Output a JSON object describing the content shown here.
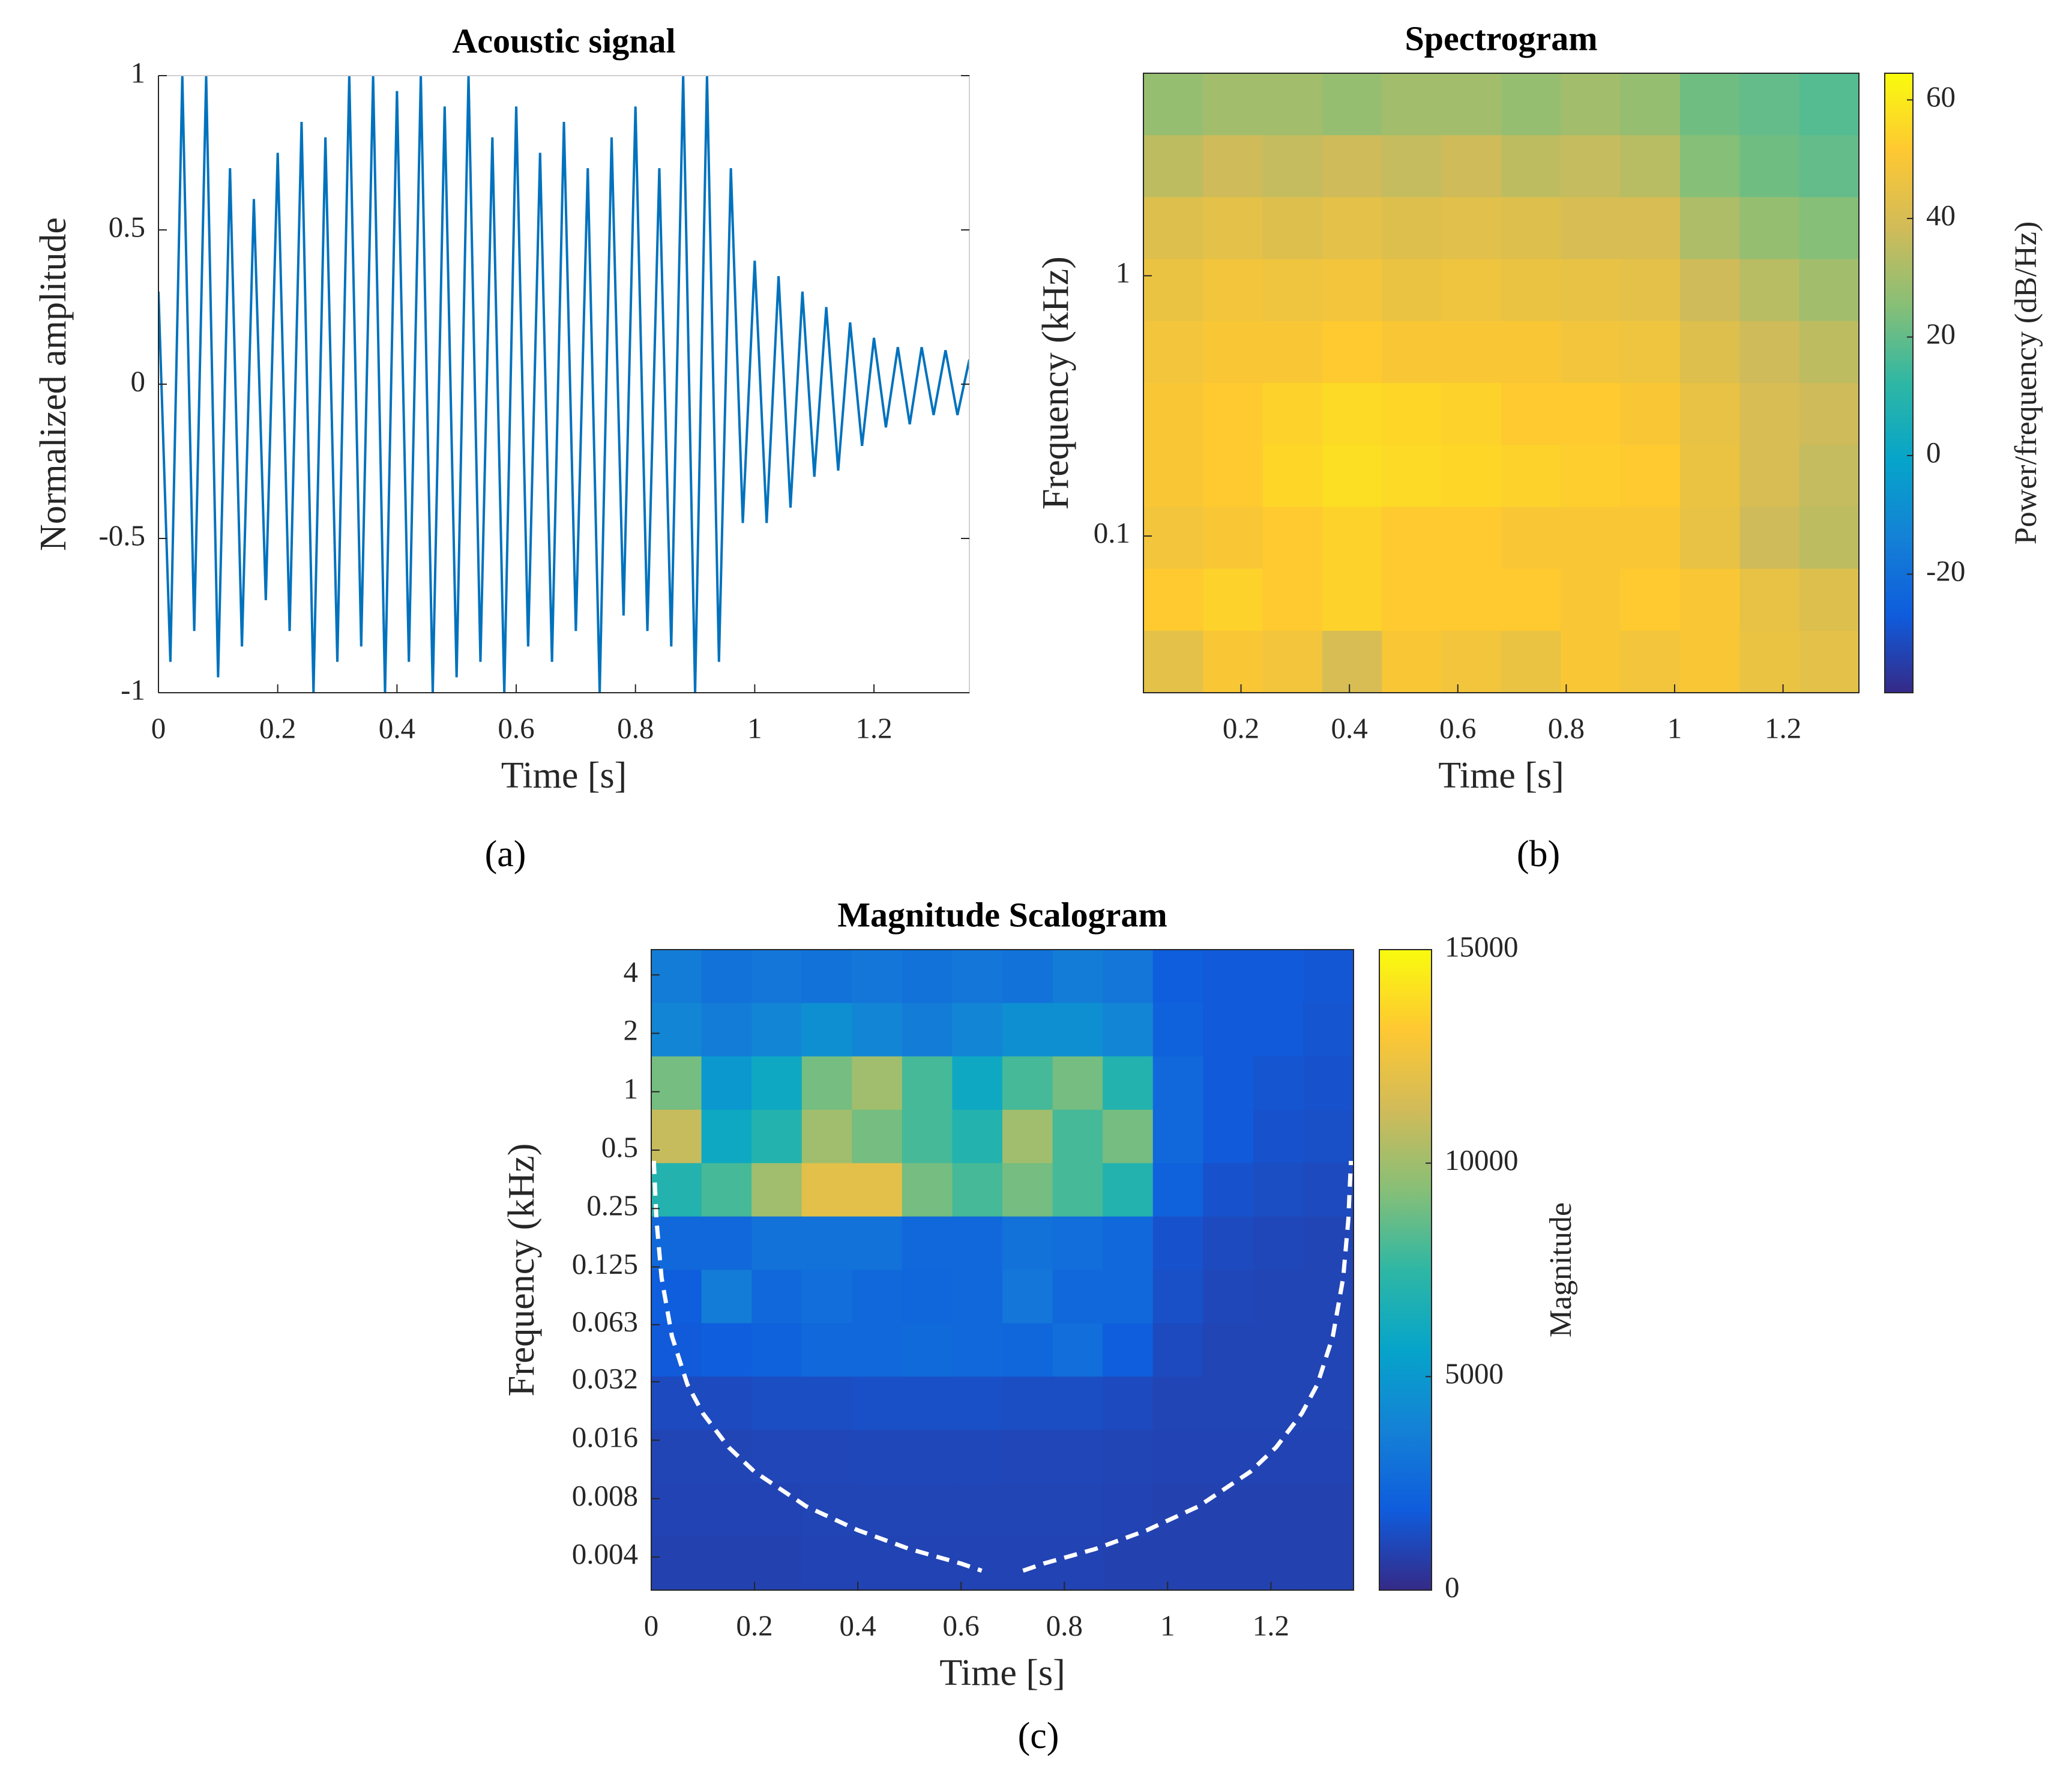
{
  "chart_data": [
    {
      "type": "line",
      "title": "Acoustic signal",
      "xlabel": "Time [s]",
      "ylabel": "Normalized amplitude",
      "caption": "(a)",
      "x": [
        0,
        0.02,
        0.04,
        0.06,
        0.08,
        0.1,
        0.12,
        0.14,
        0.16,
        0.18,
        0.2,
        0.22,
        0.24,
        0.26,
        0.28,
        0.3,
        0.32,
        0.34,
        0.36,
        0.38,
        0.4,
        0.42,
        0.44,
        0.46,
        0.48,
        0.5,
        0.52,
        0.54,
        0.56,
        0.58,
        0.6,
        0.62,
        0.64,
        0.66,
        0.68,
        0.7,
        0.72,
        0.74,
        0.76,
        0.78,
        0.8,
        0.82,
        0.84,
        0.86,
        0.88,
        0.9,
        0.92,
        0.94,
        0.96,
        0.98,
        1.0,
        1.02,
        1.04,
        1.06,
        1.08,
        1.1,
        1.12,
        1.14,
        1.16,
        1.18,
        1.2,
        1.22,
        1.24,
        1.26,
        1.28,
        1.3,
        1.32,
        1.34,
        1.36
      ],
      "values": [
        0.3,
        -0.9,
        1,
        -0.8,
        1,
        -0.95,
        0.7,
        -0.85,
        0.6,
        -0.7,
        0.75,
        -0.8,
        0.85,
        -1,
        0.8,
        -0.9,
        1,
        -0.85,
        1,
        -1,
        0.95,
        -0.9,
        1,
        -1,
        0.9,
        -0.95,
        1,
        -0.9,
        0.8,
        -1,
        0.9,
        -0.85,
        0.75,
        -0.9,
        0.85,
        -0.8,
        0.7,
        -1,
        0.8,
        -0.75,
        0.9,
        -0.8,
        0.7,
        -0.85,
        1,
        -1,
        1,
        -0.9,
        0.7,
        -0.45,
        0.4,
        -0.45,
        0.35,
        -0.4,
        0.3,
        -0.3,
        0.25,
        -0.28,
        0.2,
        -0.2,
        0.15,
        -0.14,
        0.12,
        -0.13,
        0.12,
        -0.1,
        0.11,
        -0.1,
        0.08
      ],
      "color": "#0072bd",
      "xlim": [
        0,
        1.36
      ],
      "xticks": [
        0,
        0.2,
        0.4,
        0.6,
        0.8,
        1,
        1.2
      ],
      "ylim": [
        -1,
        1
      ],
      "yticks": [
        -1,
        -0.5,
        0,
        0.5,
        1
      ]
    },
    {
      "type": "heatmap",
      "title": "Spectrogram",
      "xlabel": "Time [s]",
      "ylabel": "Frequency (kHz)",
      "caption": "(b)",
      "xlim": [
        0.02,
        1.34
      ],
      "xticks": [
        0.2,
        0.4,
        0.6,
        0.8,
        1,
        1.2
      ],
      "ylim": [
        0.025,
        6
      ],
      "yscale": "log",
      "yticks": [
        0.1,
        1
      ],
      "colormap": "parula",
      "clabel": "Power/frequency (dB/Hz)",
      "clim": [
        -40,
        64.5
      ],
      "cticks": [
        -20,
        0,
        20,
        40,
        60
      ],
      "z": [
        [
          28,
          30,
          30,
          28,
          30,
          30,
          28,
          30,
          28,
          22,
          20,
          18
        ],
        [
          35,
          38,
          36,
          38,
          36,
          38,
          35,
          36,
          34,
          25,
          22,
          20
        ],
        [
          42,
          44,
          42,
          44,
          42,
          43,
          42,
          40,
          40,
          32,
          28,
          25
        ],
        [
          46,
          48,
          47,
          48,
          46,
          47,
          46,
          45,
          44,
          38,
          34,
          30
        ],
        [
          48,
          50,
          50,
          52,
          50,
          50,
          50,
          48,
          47,
          42,
          38,
          35
        ],
        [
          50,
          52,
          54,
          56,
          55,
          54,
          52,
          52,
          50,
          45,
          40,
          38
        ],
        [
          50,
          52,
          55,
          57,
          56,
          55,
          54,
          53,
          52,
          46,
          40,
          36
        ],
        [
          48,
          50,
          52,
          54,
          52,
          52,
          50,
          50,
          50,
          45,
          38,
          35
        ],
        [
          52,
          54,
          52,
          54,
          52,
          52,
          52,
          50,
          52,
          50,
          45,
          42
        ],
        [
          44,
          50,
          48,
          40,
          50,
          48,
          46,
          50,
          48,
          50,
          46,
          44
        ]
      ]
    },
    {
      "type": "heatmap",
      "title": "Magnitude Scalogram",
      "xlabel": "Time [s]",
      "ylabel": "Frequency (kHz)",
      "caption": "(c)",
      "xlim": [
        0,
        1.36
      ],
      "xticks": [
        0,
        0.2,
        0.4,
        0.6,
        0.8,
        1,
        1.2
      ],
      "ylim": [
        0.0027,
        5.4
      ],
      "yscale": "log",
      "yticks": [
        4,
        2,
        1,
        0.5,
        0.25,
        0.125,
        0.063,
        0.032,
        0.016,
        0.008,
        0.004
      ],
      "colormap": "parula",
      "clabel": "Magnitude",
      "clim": [
        0,
        15000
      ],
      "cticks": [
        0,
        5000,
        10000,
        15000
      ],
      "z": [
        [
          3500,
          3000,
          3200,
          3000,
          3200,
          3000,
          3200,
          3000,
          3500,
          3200,
          2000,
          1800,
          1800,
          1700
        ],
        [
          4000,
          3500,
          4000,
          4500,
          4000,
          3500,
          4000,
          4500,
          4500,
          4000,
          2200,
          1800,
          1800,
          1600
        ],
        [
          9000,
          5000,
          6000,
          9000,
          10000,
          8000,
          6000,
          8000,
          9000,
          7000,
          2500,
          1800,
          1600,
          1500
        ],
        [
          11000,
          6000,
          7000,
          10000,
          9000,
          8000,
          7000,
          10000,
          8000,
          9000,
          2500,
          1800,
          1500,
          1400
        ],
        [
          7000,
          8000,
          10000,
          12000,
          12000,
          9000,
          8000,
          9000,
          8000,
          7000,
          2200,
          1500,
          1300,
          1200
        ],
        [
          2500,
          2500,
          3000,
          3000,
          3000,
          2500,
          2500,
          3000,
          2800,
          2500,
          1500,
          1200,
          1100,
          1000
        ],
        [
          2000,
          3500,
          2500,
          2800,
          2500,
          2400,
          2500,
          3200,
          2500,
          2500,
          1400,
          1100,
          1000,
          1000
        ],
        [
          1800,
          2000,
          2200,
          2500,
          2500,
          2600,
          2500,
          2400,
          2800,
          2000,
          1200,
          1000,
          1000,
          1000
        ],
        [
          1200,
          1200,
          1300,
          1300,
          1400,
          1400,
          1400,
          1300,
          1300,
          1200,
          1000,
          1000,
          1000,
          1000
        ],
        [
          1000,
          1000,
          1050,
          1050,
          1100,
          1100,
          1100,
          1050,
          1050,
          1000,
          950,
          950,
          950,
          950
        ],
        [
          950,
          950,
          950,
          1000,
          1000,
          1000,
          1000,
          1000,
          1000,
          950,
          900,
          900,
          900,
          900
        ],
        [
          900,
          900,
          900,
          950,
          950,
          950,
          950,
          950,
          950,
          900,
          900,
          900,
          900,
          900
        ]
      ],
      "coi": {
        "x": [
          0.005,
          0.01,
          0.02,
          0.04,
          0.07,
          0.1,
          0.15,
          0.2,
          0.3,
          0.4,
          0.5,
          0.6,
          0.64,
          null,
          0.72,
          0.76,
          0.86,
          0.96,
          1.06,
          1.16,
          1.21,
          1.26,
          1.29,
          1.32,
          1.34,
          1.35,
          1.355
        ],
        "values": [
          0.44,
          0.22,
          0.11,
          0.055,
          0.031,
          0.022,
          0.0147,
          0.011,
          0.0073,
          0.0055,
          0.0044,
          0.0037,
          0.0034,
          null,
          0.0034,
          0.0037,
          0.0044,
          0.0055,
          0.0073,
          0.011,
          0.0147,
          0.022,
          0.031,
          0.055,
          0.11,
          0.22,
          0.44
        ]
      }
    }
  ]
}
